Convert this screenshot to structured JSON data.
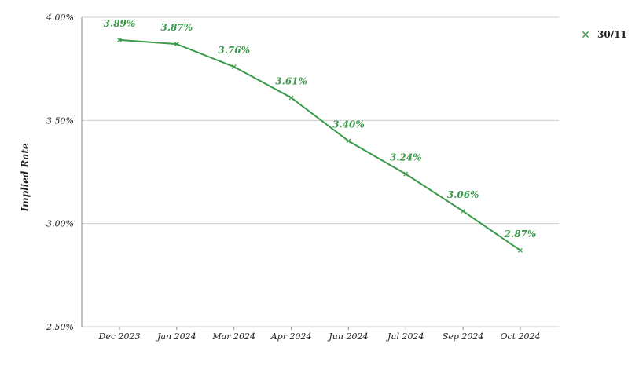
{
  "chart_data": {
    "type": "line",
    "title": "",
    "xlabel": "",
    "ylabel": "Implied Rate",
    "categories": [
      "Dec 2023",
      "Jan 2024",
      "Mar 2024",
      "Apr 2024",
      "Jun 2024",
      "Jul 2024",
      "Sep 2024",
      "Oct 2024"
    ],
    "series": [
      {
        "name": "30/11",
        "values": [
          3.89,
          3.87,
          3.76,
          3.61,
          3.4,
          3.24,
          3.06,
          2.87
        ],
        "data_labels": [
          "3.89%",
          "3.87%",
          "3.76%",
          "3.61%",
          "3.40%",
          "3.24%",
          "3.06%",
          "2.87%"
        ],
        "color": "#3a9a4a",
        "marker": "x"
      }
    ],
    "ylim": [
      2.5,
      4.0
    ],
    "yticks": [
      2.5,
      3.0,
      3.5,
      4.0
    ],
    "ytick_labels": [
      "2.50%",
      "3.00%",
      "3.50%",
      "4.00%"
    ],
    "grid": true,
    "legend_position": "top-right",
    "gridline_color": "#cccccc",
    "axis_color": "#888888"
  }
}
